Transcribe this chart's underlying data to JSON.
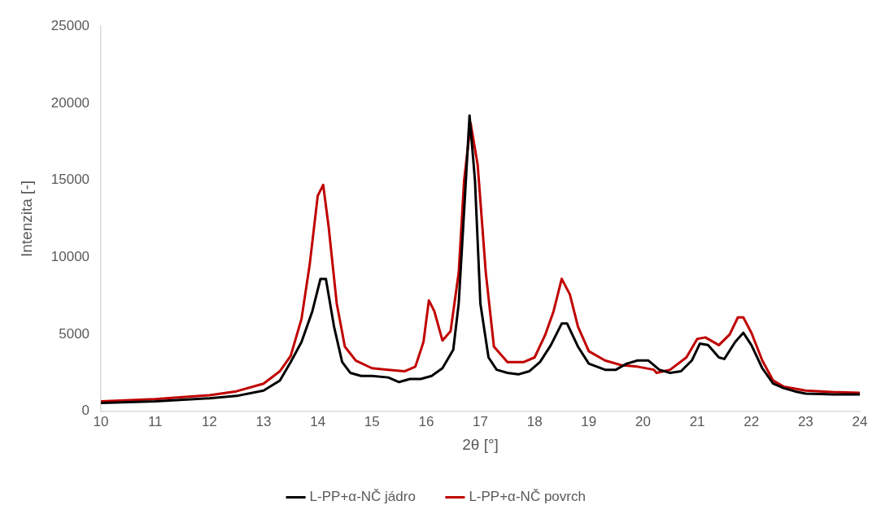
{
  "chart_data": {
    "type": "line",
    "xlabel": "2θ [°]",
    "ylabel": "Intenzita [-]",
    "xlim": [
      10,
      24
    ],
    "xticks": [
      10,
      11,
      12,
      13,
      14,
      15,
      16,
      17,
      18,
      19,
      20,
      21,
      22,
      23,
      24
    ],
    "ylim": [
      0,
      25000
    ],
    "yticks": [
      0,
      5000,
      10000,
      15000,
      20000,
      25000
    ],
    "grid": false,
    "legend": "bottom",
    "marker": "none",
    "line_style": "solid",
    "series": [
      {
        "name": "L-PP+α-NČ jádro",
        "color": "#000000",
        "x": [
          10,
          11,
          12,
          12.5,
          13,
          13.3,
          13.5,
          13.7,
          13.9,
          14.05,
          14.15,
          14.3,
          14.45,
          14.6,
          14.8,
          15,
          15.3,
          15.5,
          15.7,
          15.9,
          16.1,
          16.3,
          16.5,
          16.6,
          16.7,
          16.8,
          16.9,
          17,
          17.15,
          17.3,
          17.5,
          17.7,
          17.9,
          18.1,
          18.3,
          18.5,
          18.6,
          18.8,
          19,
          19.3,
          19.5,
          19.7,
          19.9,
          20.1,
          20.3,
          20.5,
          20.7,
          20.9,
          21.05,
          21.2,
          21.4,
          21.5,
          21.7,
          21.85,
          22,
          22.2,
          22.4,
          22.6,
          22.8,
          23,
          23.5,
          24
        ],
        "values": [
          550,
          650,
          850,
          1000,
          1350,
          2000,
          3200,
          4500,
          6500,
          8600,
          8600,
          5500,
          3200,
          2500,
          2300,
          2300,
          2200,
          1900,
          2100,
          2100,
          2300,
          2800,
          4000,
          7000,
          13000,
          19200,
          15000,
          7000,
          3500,
          2700,
          2500,
          2400,
          2600,
          3200,
          4300,
          5700,
          5700,
          4200,
          3100,
          2700,
          2700,
          3100,
          3300,
          3300,
          2700,
          2500,
          2600,
          3300,
          4400,
          4300,
          3500,
          3400,
          4500,
          5100,
          4300,
          2800,
          1800,
          1500,
          1300,
          1150,
          1100,
          1100
        ]
      },
      {
        "name": "L-PP+α-NČ povrch",
        "color": "#c00000",
        "x": [
          10,
          11,
          12,
          12.5,
          13,
          13.3,
          13.5,
          13.7,
          13.85,
          14,
          14.1,
          14.2,
          14.35,
          14.5,
          14.7,
          15,
          15.3,
          15.6,
          15.8,
          15.95,
          16.05,
          16.15,
          16.3,
          16.45,
          16.6,
          16.7,
          16.82,
          16.95,
          17.1,
          17.25,
          17.5,
          17.8,
          18,
          18.2,
          18.35,
          18.5,
          18.65,
          18.8,
          19,
          19.3,
          19.6,
          19.9,
          20.2,
          20.25,
          20.5,
          20.8,
          21,
          21.15,
          21.4,
          21.6,
          21.75,
          21.85,
          22,
          22.2,
          22.4,
          22.6,
          23,
          23.5,
          24
        ],
        "values": [
          650,
          800,
          1050,
          1300,
          1800,
          2600,
          3600,
          6000,
          9500,
          14000,
          14700,
          12000,
          7000,
          4200,
          3300,
          2800,
          2700,
          2600,
          2900,
          4500,
          7200,
          6500,
          4600,
          5200,
          9000,
          15000,
          18700,
          16000,
          9000,
          4200,
          3200,
          3200,
          3500,
          5000,
          6500,
          8600,
          7600,
          5500,
          3900,
          3300,
          3000,
          2900,
          2700,
          2500,
          2700,
          3500,
          4700,
          4800,
          4300,
          5000,
          6100,
          6100,
          5100,
          3300,
          2000,
          1600,
          1350,
          1250,
          1200
        ]
      }
    ]
  }
}
